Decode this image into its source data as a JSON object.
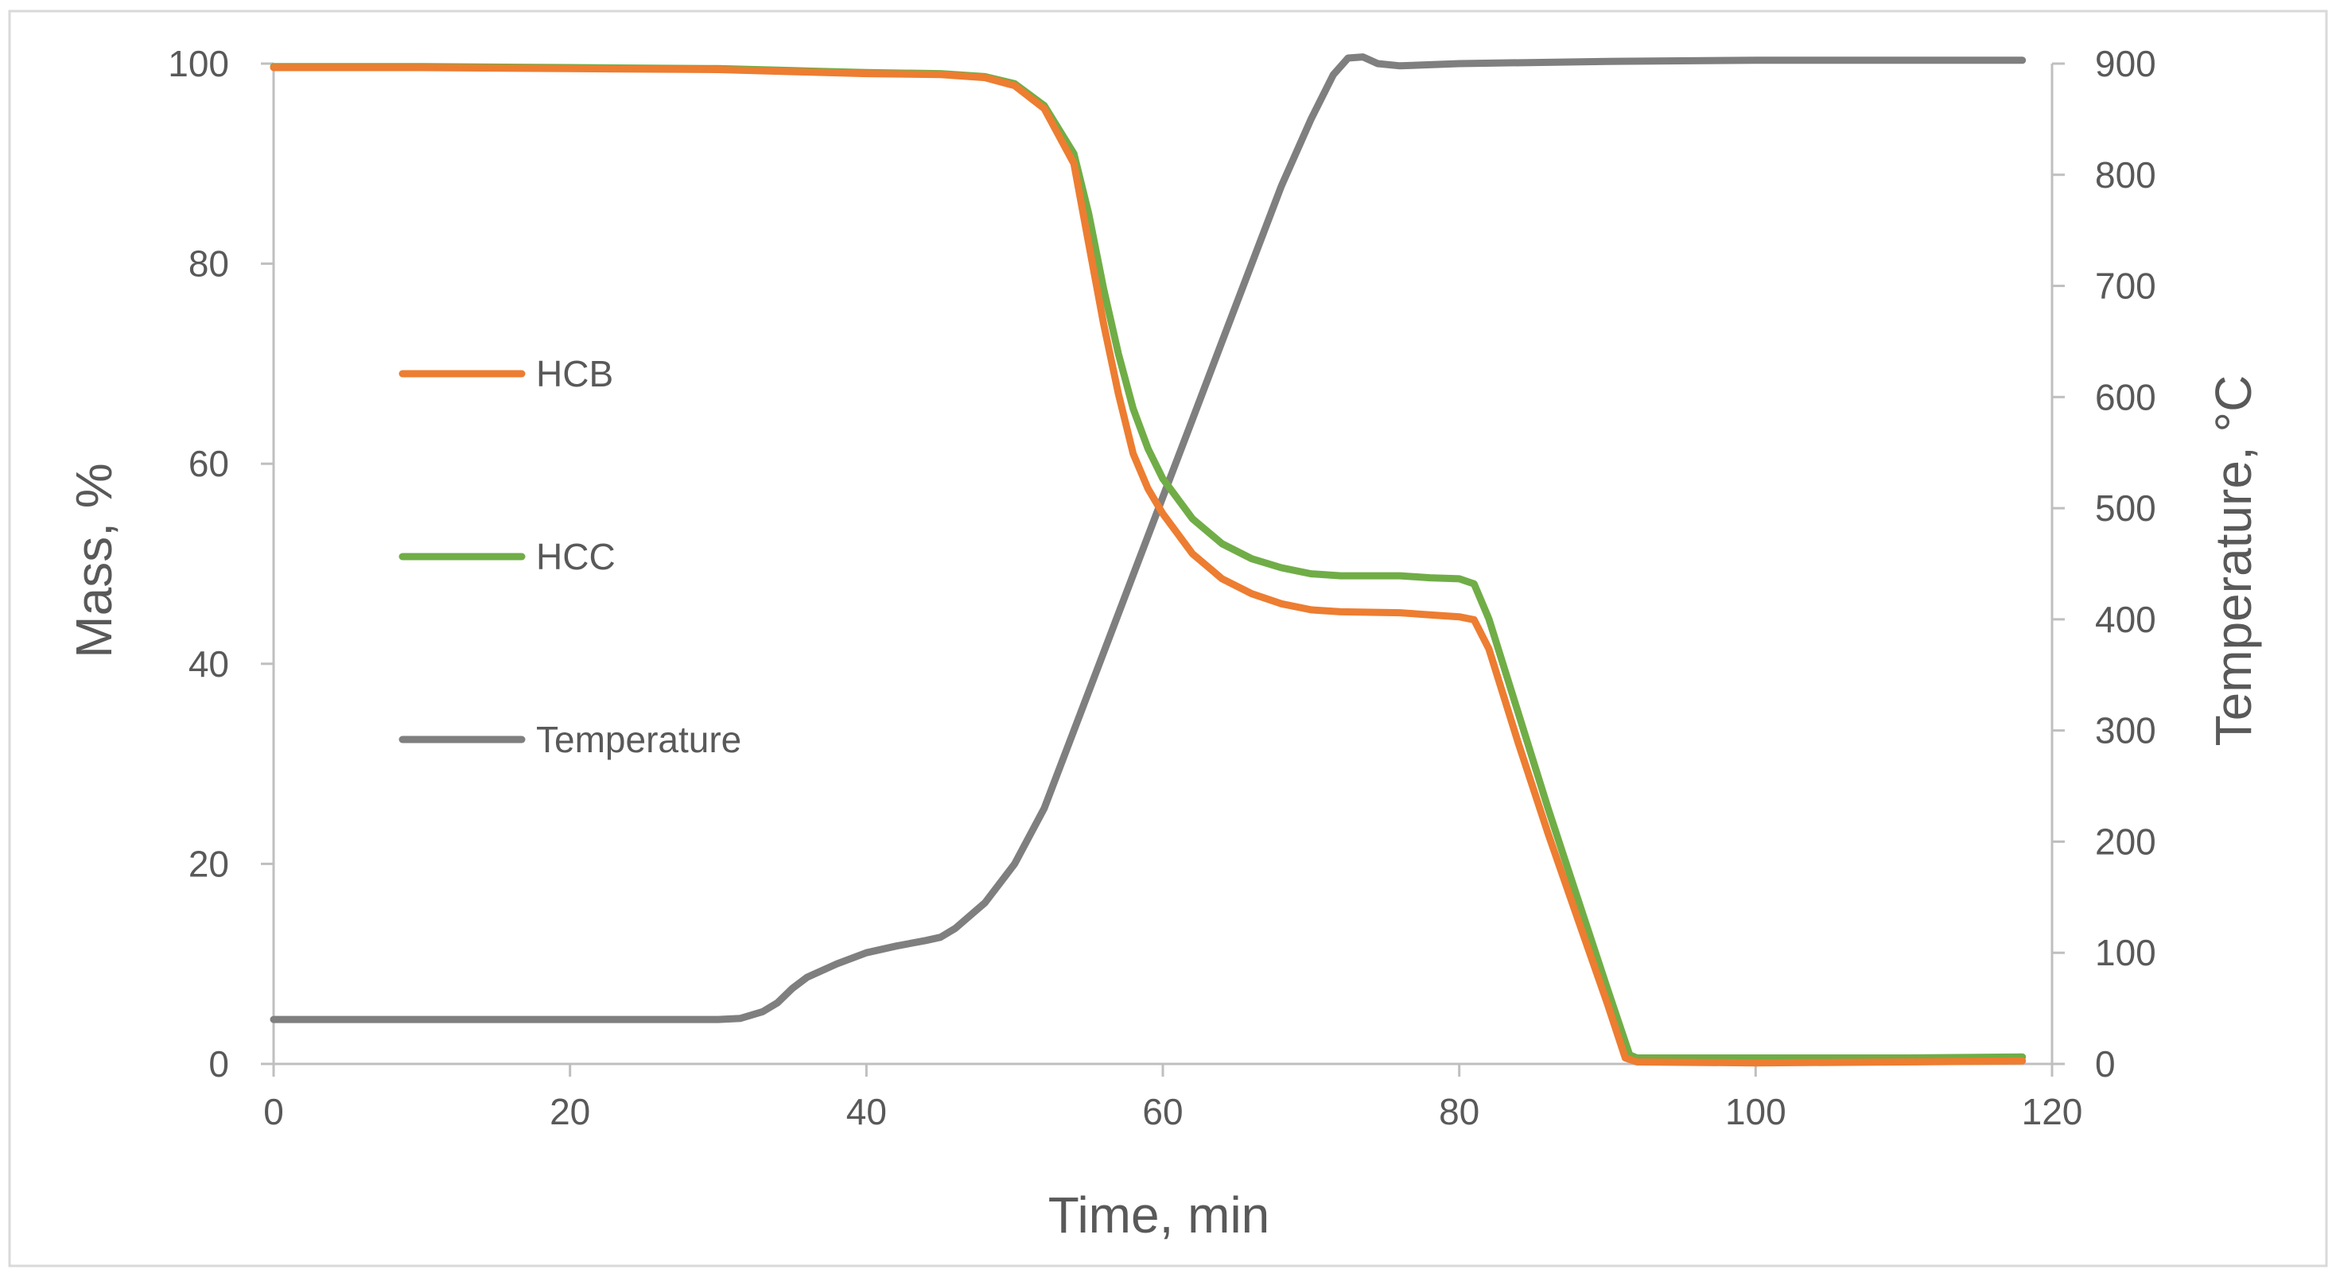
{
  "chart_data": {
    "type": "line",
    "title": "",
    "xlabel": "Time, min",
    "ylabel": "Mass, %",
    "y2label": "Temperature, °C",
    "xlim": [
      0,
      120
    ],
    "ylim": [
      0,
      100
    ],
    "y2lim": [
      0,
      900
    ],
    "xticks": [
      "0",
      "20",
      "40",
      "60",
      "80",
      "100",
      "120"
    ],
    "yticks": [
      "0",
      "20",
      "40",
      "60",
      "80",
      "100"
    ],
    "y2ticks": [
      "0",
      "100",
      "200",
      "300",
      "400",
      "500",
      "600",
      "700",
      "800",
      "900"
    ],
    "grid": false,
    "legend_position": "left-middle",
    "series": [
      {
        "name": "HCB",
        "axis": "left",
        "color": "#ED7D31",
        "points": [
          [
            0,
            99.6
          ],
          [
            10,
            99.6
          ],
          [
            20,
            99.5
          ],
          [
            30,
            99.4
          ],
          [
            35,
            99.2
          ],
          [
            40,
            99.0
          ],
          [
            45,
            98.9
          ],
          [
            48,
            98.6
          ],
          [
            50,
            97.8
          ],
          [
            52,
            95.5
          ],
          [
            54,
            90.0
          ],
          [
            55,
            82.0
          ],
          [
            56,
            74.0
          ],
          [
            57,
            67.0
          ],
          [
            58,
            61.0
          ],
          [
            59,
            57.5
          ],
          [
            60,
            55.0
          ],
          [
            62,
            51.0
          ],
          [
            64,
            48.5
          ],
          [
            66,
            47.0
          ],
          [
            68,
            46.0
          ],
          [
            70,
            45.4
          ],
          [
            72,
            45.2
          ],
          [
            76,
            45.1
          ],
          [
            78,
            44.9
          ],
          [
            80,
            44.7
          ],
          [
            81,
            44.4
          ],
          [
            82,
            41.5
          ],
          [
            84,
            32.0
          ],
          [
            86,
            23.0
          ],
          [
            88,
            14.5
          ],
          [
            90,
            6.0
          ],
          [
            91.2,
            0.6
          ],
          [
            92,
            0.2
          ],
          [
            100,
            0.1
          ],
          [
            110,
            0.2
          ],
          [
            118,
            0.3
          ]
        ]
      },
      {
        "name": "HCC",
        "axis": "left",
        "color": "#70AD47",
        "points": [
          [
            0,
            99.7
          ],
          [
            10,
            99.7
          ],
          [
            20,
            99.6
          ],
          [
            30,
            99.5
          ],
          [
            35,
            99.3
          ],
          [
            40,
            99.1
          ],
          [
            45,
            99.0
          ],
          [
            48,
            98.7
          ],
          [
            50,
            98.0
          ],
          [
            52,
            95.8
          ],
          [
            54,
            91.0
          ],
          [
            55,
            85.0
          ],
          [
            56,
            77.5
          ],
          [
            57,
            71.0
          ],
          [
            58,
            65.5
          ],
          [
            59,
            61.5
          ],
          [
            60,
            58.5
          ],
          [
            62,
            54.5
          ],
          [
            64,
            52.0
          ],
          [
            66,
            50.5
          ],
          [
            68,
            49.6
          ],
          [
            70,
            49.0
          ],
          [
            72,
            48.8
          ],
          [
            76,
            48.8
          ],
          [
            78,
            48.6
          ],
          [
            80,
            48.5
          ],
          [
            81,
            48.0
          ],
          [
            82,
            44.5
          ],
          [
            84,
            35.0
          ],
          [
            86,
            25.5
          ],
          [
            88,
            16.5
          ],
          [
            90,
            7.5
          ],
          [
            91.5,
            0.9
          ],
          [
            92,
            0.6
          ],
          [
            100,
            0.6
          ],
          [
            110,
            0.6
          ],
          [
            118,
            0.7
          ]
        ]
      },
      {
        "name": "Temperature",
        "axis": "right",
        "color": "#7F7F7F",
        "points": [
          [
            0,
            40
          ],
          [
            10,
            40
          ],
          [
            20,
            40
          ],
          [
            30,
            40
          ],
          [
            31.5,
            41
          ],
          [
            33,
            47
          ],
          [
            34,
            55
          ],
          [
            35,
            68
          ],
          [
            36,
            78
          ],
          [
            38,
            90
          ],
          [
            40,
            100
          ],
          [
            42,
            106
          ],
          [
            44,
            111
          ],
          [
            45,
            114
          ],
          [
            46,
            122
          ],
          [
            48,
            145
          ],
          [
            50,
            180
          ],
          [
            52,
            230
          ],
          [
            54,
            300
          ],
          [
            56,
            370
          ],
          [
            58,
            440
          ],
          [
            60,
            510
          ],
          [
            62,
            580
          ],
          [
            64,
            650
          ],
          [
            66,
            720
          ],
          [
            68,
            790
          ],
          [
            70,
            850
          ],
          [
            71.5,
            890
          ],
          [
            72.5,
            905
          ],
          [
            73.5,
            906
          ],
          [
            74.5,
            900
          ],
          [
            76,
            898
          ],
          [
            80,
            900
          ],
          [
            90,
            902
          ],
          [
            100,
            903
          ],
          [
            110,
            903
          ],
          [
            118,
            903
          ]
        ]
      }
    ]
  }
}
